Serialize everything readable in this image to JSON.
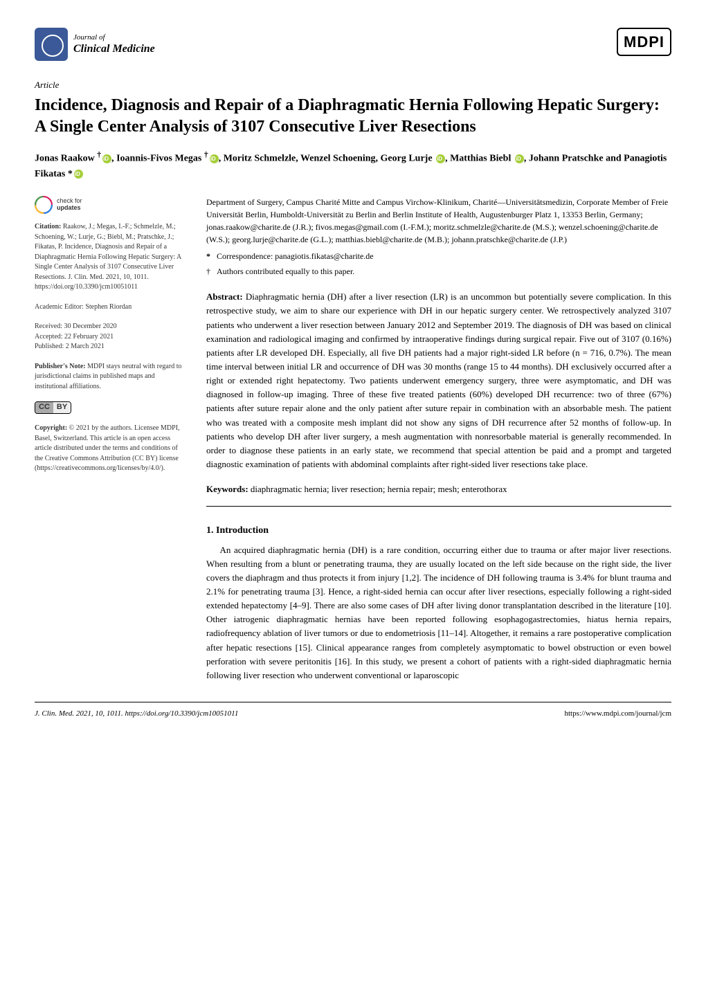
{
  "header": {
    "journal_of": "Journal of",
    "journal_name": "Clinical Medicine",
    "publisher_logo": "MDPI"
  },
  "article_type": "Article",
  "title": "Incidence, Diagnosis and Repair of a Diaphragmatic Hernia Following Hepatic Surgery: A Single Center Analysis of 3107 Consecutive Liver Resections",
  "authors_html": "Jonas Raakow <sup>†</sup><span class='orcid'></span>, Ioannis-Fivos Megas <sup>†</sup><span class='orcid'></span>, Moritz Schmelzle, Wenzel Schoening, Georg Lurje <span class='orcid'></span>, Matthias Biebl <span class='orcid'></span>, Johann Pratschke and Panagiotis Fikatas *<span class='orcid'></span>",
  "affiliation": "Department of Surgery, Campus Charité Mitte and Campus Virchow-Klinikum, Charité—Universitätsmedizin, Corporate Member of Freie Universität Berlin, Humboldt-Universität zu Berlin and Berlin Institute of Health, Augustenburger Platz 1, 13353 Berlin, Germany; jonas.raakow@charite.de (J.R.); fivos.megas@gmail.com (I.-F.M.); moritz.schmelzle@charite.de (M.S.); wenzel.schoening@charite.de (W.S.); georg.lurje@charite.de (G.L.); matthias.biebl@charite.de (M.B.); johann.pratschke@charite.de (J.P.)",
  "correspondence_label": "*",
  "correspondence": "Correspondence: panagiotis.fikatas@charite.de",
  "contrib_label": "†",
  "contrib": "Authors contributed equally to this paper.",
  "abstract_label": "Abstract:",
  "abstract": " Diaphragmatic hernia (DH) after a liver resection (LR) is an uncommon but potentially severe complication. In this retrospective study, we aim to share our experience with DH in our hepatic surgery center. We retrospectively analyzed 3107 patients who underwent a liver resection between January 2012 and September 2019. The diagnosis of DH was based on clinical examination and radiological imaging and confirmed by intraoperative findings during surgical repair. Five out of 3107 (0.16%) patients after LR developed DH. Especially, all five DH patients had a major right-sided LR before (n = 716, 0.7%). The mean time interval between initial LR and occurrence of DH was 30 months (range 15 to 44 months). DH exclusively occurred after a right or extended right hepatectomy. Two patients underwent emergency surgery, three were asymptomatic, and DH was diagnosed in follow-up imaging. Three of these five treated patients (60%) developed DH recurrence: two of three (67%) patients after suture repair alone and the only patient after suture repair in combination with an absorbable mesh. The patient who was treated with a composite mesh implant did not show any signs of DH recurrence after 52 months of follow-up. In patients who develop DH after liver surgery, a mesh augmentation with nonresorbable material is generally recommended. In order to diagnose these patients in an early state, we recommend that special attention be paid and a prompt and targeted diagnostic examination of patients with abdominal complaints after right-sided liver resections take place.",
  "keywords_label": "Keywords:",
  "keywords": " diaphragmatic hernia; liver resection; hernia repair; mesh; enterothorax",
  "section1_heading": "1. Introduction",
  "section1_body": "An acquired diaphragmatic hernia (DH) is a rare condition, occurring either due to trauma or after major liver resections. When resulting from a blunt or penetrating trauma, they are usually located on the left side because on the right side, the liver covers the diaphragm and thus protects it from injury [1,2]. The incidence of DH following trauma is 3.4% for blunt trauma and 2.1% for penetrating trauma [3]. Hence, a right-sided hernia can occur after liver resections, especially following a right-sided extended hepatectomy [4–9]. There are also some cases of DH after living donor transplantation described in the literature [10]. Other iatrogenic diaphragmatic hernias have been reported following esophagogastrectomies, hiatus hernia repairs, radiofrequency ablation of liver tumors or due to endometriosis [11–14]. Altogether, it remains a rare postoperative complication after hepatic resections [15]. Clinical appearance ranges from completely asymptomatic to bowel obstruction or even bowel perforation with severe peritonitis [16]. In this study, we present a cohort of patients with a right-sided diaphragmatic hernia following liver resection who underwent conventional or laparoscopic",
  "sidebar": {
    "check_for": "check for",
    "updates": "updates",
    "citation_label": "Citation:",
    "citation": " Raakow, J.; Megas, I.-F.; Schmelzle, M.; Schoening, W.; Lurje, G.; Biebl, M.; Pratschke, J.; Fikatas, P. Incidence, Diagnosis and Repair of a Diaphragmatic Hernia Following Hepatic Surgery: A Single Center Analysis of 3107 Consecutive Liver Resections. J. Clin. Med. 2021, 10, 1011. https://doi.org/10.3390/jcm10051011",
    "academic_editor_label": "Academic Editor: ",
    "academic_editor": "Stephen Riordan",
    "received_label": "Received: ",
    "received": "30 December 2020",
    "accepted_label": "Accepted: ",
    "accepted": "22 February 2021",
    "published_label": "Published: ",
    "published": "2 March 2021",
    "publishers_note_label": "Publisher's Note:",
    "publishers_note": " MDPI stays neutral with regard to jurisdictional claims in published maps and institutional affiliations.",
    "copyright_label": "Copyright:",
    "copyright": " © 2021 by the authors. Licensee MDPI, Basel, Switzerland. This article is an open access article distributed under the terms and conditions of the Creative Commons Attribution (CC BY) license (https://creativecommons.org/licenses/by/4.0/)."
  },
  "footer": {
    "left": "J. Clin. Med. 2021, 10, 1011. https://doi.org/10.3390/jcm10051011",
    "right": "https://www.mdpi.com/journal/jcm"
  },
  "colors": {
    "logo_bg": "#3b5998",
    "orcid": "#a6ce39",
    "link": "#0066aa",
    "text": "#000000",
    "sidebar_text": "#333333"
  }
}
